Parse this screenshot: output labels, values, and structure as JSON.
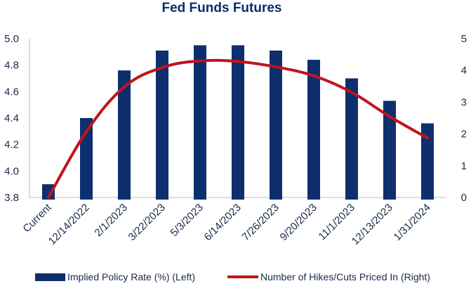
{
  "chart_data": {
    "type": "bar",
    "title": "Fed Funds Futures",
    "categories": [
      "Current",
      "12/14/2022",
      "2/1/2023",
      "3/22/2023",
      "5/3/2023",
      "6/14/2023",
      "7/26/2023",
      "9/20/2023",
      "11/1/2023",
      "12/13/2023",
      "1/31/2024"
    ],
    "series": [
      {
        "name": "Implied Policy Rate (%) (Left)",
        "type": "bar",
        "axis": "left",
        "color": "#0d2f6e",
        "values": [
          3.9,
          4.4,
          4.76,
          4.91,
          4.95,
          4.95,
          4.91,
          4.84,
          4.7,
          4.53,
          4.36
        ]
      },
      {
        "name": "Number of Hikes/Cuts Priced In (Right)",
        "type": "line",
        "axis": "right",
        "color": "#c0141c",
        "values": [
          0.0,
          2.07,
          3.48,
          4.09,
          4.3,
          4.28,
          4.11,
          3.83,
          3.31,
          2.55,
          1.87
        ]
      }
    ],
    "y_left": {
      "ylim": [
        3.8,
        5.0
      ],
      "ticks": [
        "3.8",
        "4.0",
        "4.2",
        "4.4",
        "4.6",
        "4.8",
        "5.0"
      ]
    },
    "y_right": {
      "ylim": [
        0,
        5
      ],
      "ticks": [
        "0",
        "1",
        "2",
        "3",
        "4",
        "5"
      ]
    },
    "grid": false,
    "legend": "bottom"
  }
}
